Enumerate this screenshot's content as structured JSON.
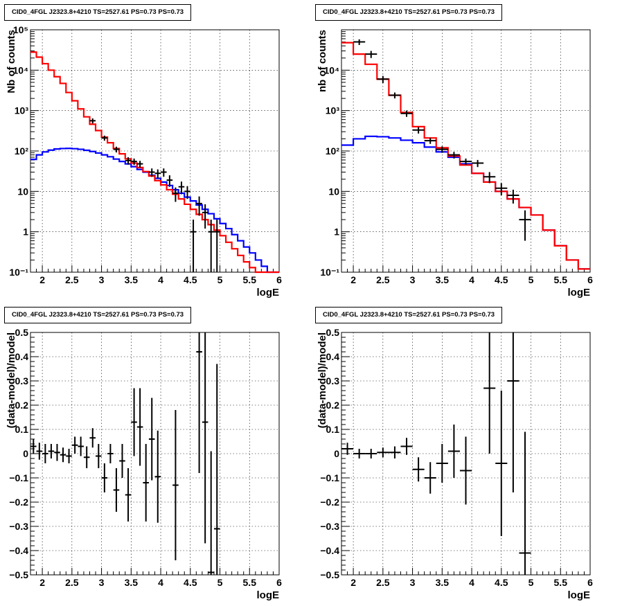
{
  "chart_data": [
    {
      "type": "line",
      "title": "CID0_4FGL J2323.8+4210 TS=2527.61 PS=0.73 PS=0.73",
      "xlabel": "logE",
      "ylabel": "Nb of counts",
      "xlim": [
        1.8,
        6.0
      ],
      "ylim": [
        0.1,
        100000
      ],
      "yscale": "log",
      "grid": true,
      "x_ticks": [
        2,
        2.5,
        3,
        3.5,
        4,
        4.5,
        5,
        5.5,
        6
      ],
      "x_tick_labels": [
        "2",
        "2.5",
        "3",
        "3.5",
        "4",
        "4.5",
        "5",
        "5.5",
        "6"
      ],
      "y_ticks": [
        0.1,
        1,
        10,
        100,
        1000,
        10000,
        100000
      ],
      "y_tick_labels": [
        "10⁻¹",
        "1",
        "10",
        "10²",
        "10³",
        "10⁴",
        "10⁵"
      ],
      "bin_edges": [
        1.8,
        1.9,
        2.0,
        2.1,
        2.2,
        2.3,
        2.4,
        2.5,
        2.6,
        2.7,
        2.8,
        2.9,
        3.0,
        3.1,
        3.2,
        3.3,
        3.4,
        3.5,
        3.6,
        3.7,
        3.8,
        3.9,
        4.0,
        4.1,
        4.2,
        4.3,
        4.4,
        4.5,
        4.6,
        4.7,
        4.8,
        4.9,
        5.0,
        5.1,
        5.2,
        5.3,
        5.4,
        5.5,
        5.6,
        5.7,
        5.8,
        5.9,
        6.0
      ],
      "series": [
        {
          "color": "#ff0000",
          "values": [
            28000,
            21000,
            14500,
            10000,
            6900,
            4700,
            2800,
            1750,
            1100,
            700,
            460,
            320,
            220,
            160,
            115,
            85,
            64,
            50,
            39,
            31,
            24,
            18.5,
            14.5,
            11,
            8.5,
            6.5,
            4.8,
            3.6,
            2.7,
            2.0,
            1.5,
            1.1,
            0.8,
            0.55,
            0.38,
            0.26,
            0.18,
            0.13,
            0.1,
            0.1,
            0.1,
            0.1
          ]
        },
        {
          "color": "#0000ff",
          "values": [
            62,
            80,
            95,
            105,
            112,
            115,
            116,
            114,
            110,
            104,
            97,
            89,
            80,
            72,
            63,
            55,
            48,
            41,
            35,
            30,
            25,
            21,
            17,
            14,
            11,
            9,
            7.2,
            5.8,
            4.6,
            3.6,
            2.8,
            2.1,
            1.6,
            1.2,
            0.85,
            0.6,
            0.42,
            0.3,
            0.2,
            0.14,
            0.1,
            0.1
          ]
        }
      ],
      "points": [
        {
          "x": 2.85,
          "y": 560,
          "err": [
            80,
            80
          ]
        },
        {
          "x": 3.05,
          "y": 210,
          "err": [
            30,
            30
          ]
        },
        {
          "x": 3.25,
          "y": 110,
          "err": [
            18,
            18
          ]
        },
        {
          "x": 3.45,
          "y": 58,
          "err": [
            12,
            12
          ]
        },
        {
          "x": 3.55,
          "y": 55,
          "err": [
            10,
            10
          ]
        },
        {
          "x": 3.65,
          "y": 48,
          "err": [
            9,
            9
          ]
        },
        {
          "x": 3.85,
          "y": 30,
          "err": [
            7,
            7
          ]
        },
        {
          "x": 3.95,
          "y": 28,
          "err": [
            7,
            7
          ]
        },
        {
          "x": 4.05,
          "y": 30,
          "err": [
            7,
            7
          ]
        },
        {
          "x": 4.15,
          "y": 19,
          "err": [
            6,
            6
          ]
        },
        {
          "x": 4.25,
          "y": 9,
          "err": [
            3.5,
            3.5
          ]
        },
        {
          "x": 4.35,
          "y": 13,
          "err": [
            4.5,
            4.5
          ]
        },
        {
          "x": 4.45,
          "y": 10,
          "err": [
            3.5,
            3.5
          ]
        },
        {
          "x": 4.55,
          "y": 1,
          "err": [
            1,
            1
          ]
        },
        {
          "x": 4.65,
          "y": 5,
          "err": [
            2.5,
            2.5
          ]
        },
        {
          "x": 4.75,
          "y": 3,
          "err": [
            1.8,
            1.8
          ]
        },
        {
          "x": 4.85,
          "y": 1,
          "err": [
            1,
            1
          ]
        },
        {
          "x": 4.95,
          "y": 1,
          "err": [
            1,
            1
          ]
        }
      ]
    },
    {
      "type": "line",
      "title": "CID0_4FGL J2323.8+4210 TS=2527.61 PS=0.73 PS=0.73",
      "xlabel": "logE",
      "ylabel": "nb of counts",
      "xlim": [
        1.8,
        6.0
      ],
      "ylim": [
        0.1,
        100000
      ],
      "yscale": "log",
      "grid": true,
      "x_ticks": [
        2,
        2.5,
        3,
        3.5,
        4,
        4.5,
        5,
        5.5,
        6
      ],
      "x_tick_labels": [
        "2",
        "2.5",
        "3",
        "3.5",
        "4",
        "4.5",
        "5",
        "5.5",
        "6"
      ],
      "y_ticks": [
        0.1,
        1,
        10,
        100,
        1000,
        10000
      ],
      "y_tick_labels": [
        "10⁻¹",
        "1",
        "10",
        "10²",
        "10³",
        "10⁴"
      ],
      "bin_edges": [
        1.8,
        2.0,
        2.2,
        2.4,
        2.6,
        2.8,
        3.0,
        3.2,
        3.4,
        3.6,
        3.8,
        4.0,
        4.2,
        4.4,
        4.6,
        4.8,
        5.0,
        5.2,
        5.4,
        5.6,
        5.8,
        6.0
      ],
      "series": [
        {
          "color": "#ff0000",
          "values": [
            48000,
            25000,
            14000,
            6000,
            2400,
            900,
            400,
            210,
            120,
            75,
            45,
            28,
            17,
            10,
            6.5,
            4,
            2.6,
            1.1,
            0.45,
            0.2,
            0.12
          ]
        },
        {
          "color": "#0000ff",
          "values": [
            140,
            200,
            230,
            225,
            210,
            185,
            160,
            125,
            95,
            70,
            48,
            28,
            17,
            10,
            6.5,
            4,
            2.6,
            1.1,
            0.45,
            0.2,
            0.12
          ]
        }
      ],
      "points": [
        {
          "x": 2.1,
          "y": 50000,
          "err": [
            8000,
            8000
          ]
        },
        {
          "x": 2.3,
          "y": 25000,
          "err": [
            5000,
            5000
          ]
        },
        {
          "x": 2.5,
          "y": 6000,
          "err": [
            1200,
            1200
          ]
        },
        {
          "x": 2.7,
          "y": 2400,
          "err": [
            400,
            400
          ]
        },
        {
          "x": 2.9,
          "y": 850,
          "err": [
            150,
            150
          ]
        },
        {
          "x": 3.1,
          "y": 330,
          "err": [
            60,
            60
          ]
        },
        {
          "x": 3.3,
          "y": 180,
          "err": [
            30,
            30
          ]
        },
        {
          "x": 3.5,
          "y": 110,
          "err": [
            20,
            20
          ]
        },
        {
          "x": 3.7,
          "y": 80,
          "err": [
            15,
            15
          ]
        },
        {
          "x": 3.9,
          "y": 55,
          "err": [
            10,
            10
          ]
        },
        {
          "x": 4.1,
          "y": 50,
          "err": [
            10,
            10
          ]
        },
        {
          "x": 4.3,
          "y": 23,
          "err": [
            7,
            7
          ]
        },
        {
          "x": 4.5,
          "y": 12,
          "err": [
            4,
            4
          ]
        },
        {
          "x": 4.7,
          "y": 8,
          "err": [
            3,
            3
          ]
        },
        {
          "x": 4.9,
          "y": 2,
          "err": [
            1.4,
            1.4
          ]
        }
      ]
    },
    {
      "type": "scatter",
      "title": "CID0_4FGL J2323.8+4210 TS=2527.61 PS=0.73 PS=0.73",
      "xlabel": "logE",
      "ylabel": "(data-model)/model",
      "xlim": [
        1.8,
        6.0
      ],
      "ylim": [
        -0.5,
        0.5
      ],
      "grid": true,
      "x_ticks": [
        2,
        2.5,
        3,
        3.5,
        4,
        4.5,
        5,
        5.5,
        6
      ],
      "x_tick_labels": [
        "2",
        "2.5",
        "3",
        "3.5",
        "4",
        "4.5",
        "5",
        "5.5",
        "6"
      ],
      "y_ticks": [
        -0.5,
        -0.4,
        -0.3,
        -0.2,
        -0.1,
        0,
        0.1,
        0.2,
        0.3,
        0.4,
        0.5
      ],
      "y_tick_labels": [
        "−0.5",
        "−0.4",
        "−0.3",
        "−0.2",
        "−0.1",
        "0",
        "0.1",
        "0.2",
        "0.3",
        "0.4",
        "0.5"
      ],
      "points": [
        {
          "x": 1.85,
          "y": 0.03,
          "xerr": 0.05,
          "err": 0.03
        },
        {
          "x": 1.95,
          "y": 0.01,
          "xerr": 0.05,
          "err": 0.035
        },
        {
          "x": 2.05,
          "y": 0.0,
          "xerr": 0.05,
          "err": 0.04
        },
        {
          "x": 2.15,
          "y": 0.01,
          "xerr": 0.05,
          "err": 0.03
        },
        {
          "x": 2.25,
          "y": 0.005,
          "xerr": 0.05,
          "err": 0.035
        },
        {
          "x": 2.35,
          "y": -0.005,
          "xerr": 0.05,
          "err": 0.03
        },
        {
          "x": 2.45,
          "y": -0.01,
          "xerr": 0.05,
          "err": 0.03
        },
        {
          "x": 2.55,
          "y": 0.035,
          "xerr": 0.05,
          "err": 0.035
        },
        {
          "x": 2.65,
          "y": 0.03,
          "xerr": 0.05,
          "err": 0.04
        },
        {
          "x": 2.75,
          "y": -0.015,
          "xerr": 0.05,
          "err": 0.045
        },
        {
          "x": 2.85,
          "y": 0.065,
          "xerr": 0.05,
          "err": 0.04
        },
        {
          "x": 2.95,
          "y": -0.01,
          "xerr": 0.05,
          "err": 0.05
        },
        {
          "x": 3.05,
          "y": -0.1,
          "xerr": 0.05,
          "err": 0.06
        },
        {
          "x": 3.15,
          "y": 0.0,
          "xerr": 0.05,
          "err": 0.04
        },
        {
          "x": 3.25,
          "y": -0.15,
          "xerr": 0.05,
          "err": 0.09
        },
        {
          "x": 3.35,
          "y": -0.03,
          "xerr": 0.05,
          "err": 0.07
        },
        {
          "x": 3.45,
          "y": -0.17,
          "xerr": 0.05,
          "err": 0.11
        },
        {
          "x": 3.55,
          "y": 0.13,
          "xerr": 0.05,
          "err": 0.14
        },
        {
          "x": 3.65,
          "y": 0.11,
          "xerr": 0.05,
          "err": 0.16
        },
        {
          "x": 3.75,
          "y": -0.12,
          "xerr": 0.05,
          "err": 0.16
        },
        {
          "x": 3.85,
          "y": 0.06,
          "xerr": 0.05,
          "err": 0.17
        },
        {
          "x": 3.95,
          "y": -0.095,
          "xerr": 0.05,
          "err": 0.19
        },
        {
          "x": 4.25,
          "y": -0.13,
          "xerr": 0.05,
          "err": 0.31
        },
        {
          "x": 4.65,
          "y": 0.42,
          "xerr": 0.05,
          "err": 0.5
        },
        {
          "x": 4.75,
          "y": 0.13,
          "xerr": 0.05,
          "err": 0.5
        },
        {
          "x": 4.85,
          "y": -0.49,
          "xerr": 0.05,
          "err": 0.5
        },
        {
          "x": 4.95,
          "y": -0.31,
          "xerr": 0.05,
          "err": 0.68
        }
      ]
    },
    {
      "type": "scatter",
      "title": "CID0_4FGL J2323.8+4210 TS=2527.61 PS=0.73 PS=0.73",
      "xlabel": "logE",
      "ylabel": "(data-model)/model",
      "xlim": [
        1.8,
        6.0
      ],
      "ylim": [
        -0.5,
        0.5
      ],
      "grid": true,
      "x_ticks": [
        2,
        2.5,
        3,
        3.5,
        4,
        4.5,
        5,
        5.5,
        6
      ],
      "x_tick_labels": [
        "2",
        "2.5",
        "3",
        "3.5",
        "4",
        "4.5",
        "5",
        "5.5",
        "6"
      ],
      "y_ticks": [
        -0.5,
        -0.4,
        -0.3,
        -0.2,
        -0.1,
        0,
        0.1,
        0.2,
        0.3,
        0.4,
        0.5
      ],
      "y_tick_labels": [
        "−0.5",
        "−0.4",
        "−0.3",
        "−0.2",
        "−0.1",
        "0",
        "0.1",
        "0.2",
        "0.3",
        "0.4",
        "0.5"
      ],
      "points": [
        {
          "x": 1.9,
          "y": 0.02,
          "xerr": 0.1,
          "err": 0.025
        },
        {
          "x": 2.1,
          "y": 0.0,
          "xerr": 0.1,
          "err": 0.02
        },
        {
          "x": 2.3,
          "y": 0.0,
          "xerr": 0.1,
          "err": 0.02
        },
        {
          "x": 2.5,
          "y": 0.005,
          "xerr": 0.1,
          "err": 0.02
        },
        {
          "x": 2.7,
          "y": 0.005,
          "xerr": 0.1,
          "err": 0.025
        },
        {
          "x": 2.9,
          "y": 0.03,
          "xerr": 0.1,
          "err": 0.035
        },
        {
          "x": 3.1,
          "y": -0.065,
          "xerr": 0.1,
          "err": 0.05
        },
        {
          "x": 3.3,
          "y": -0.1,
          "xerr": 0.1,
          "err": 0.065
        },
        {
          "x": 3.5,
          "y": -0.04,
          "xerr": 0.1,
          "err": 0.08
        },
        {
          "x": 3.7,
          "y": 0.01,
          "xerr": 0.1,
          "err": 0.11
        },
        {
          "x": 3.9,
          "y": -0.07,
          "xerr": 0.1,
          "err": 0.14
        },
        {
          "x": 4.3,
          "y": 0.27,
          "xerr": 0.1,
          "err": 0.27
        },
        {
          "x": 4.5,
          "y": -0.04,
          "xerr": 0.1,
          "err": 0.3
        },
        {
          "x": 4.7,
          "y": 0.3,
          "xerr": 0.1,
          "err": 0.46
        },
        {
          "x": 4.9,
          "y": -0.41,
          "xerr": 0.1,
          "err": 0.5
        }
      ]
    }
  ]
}
